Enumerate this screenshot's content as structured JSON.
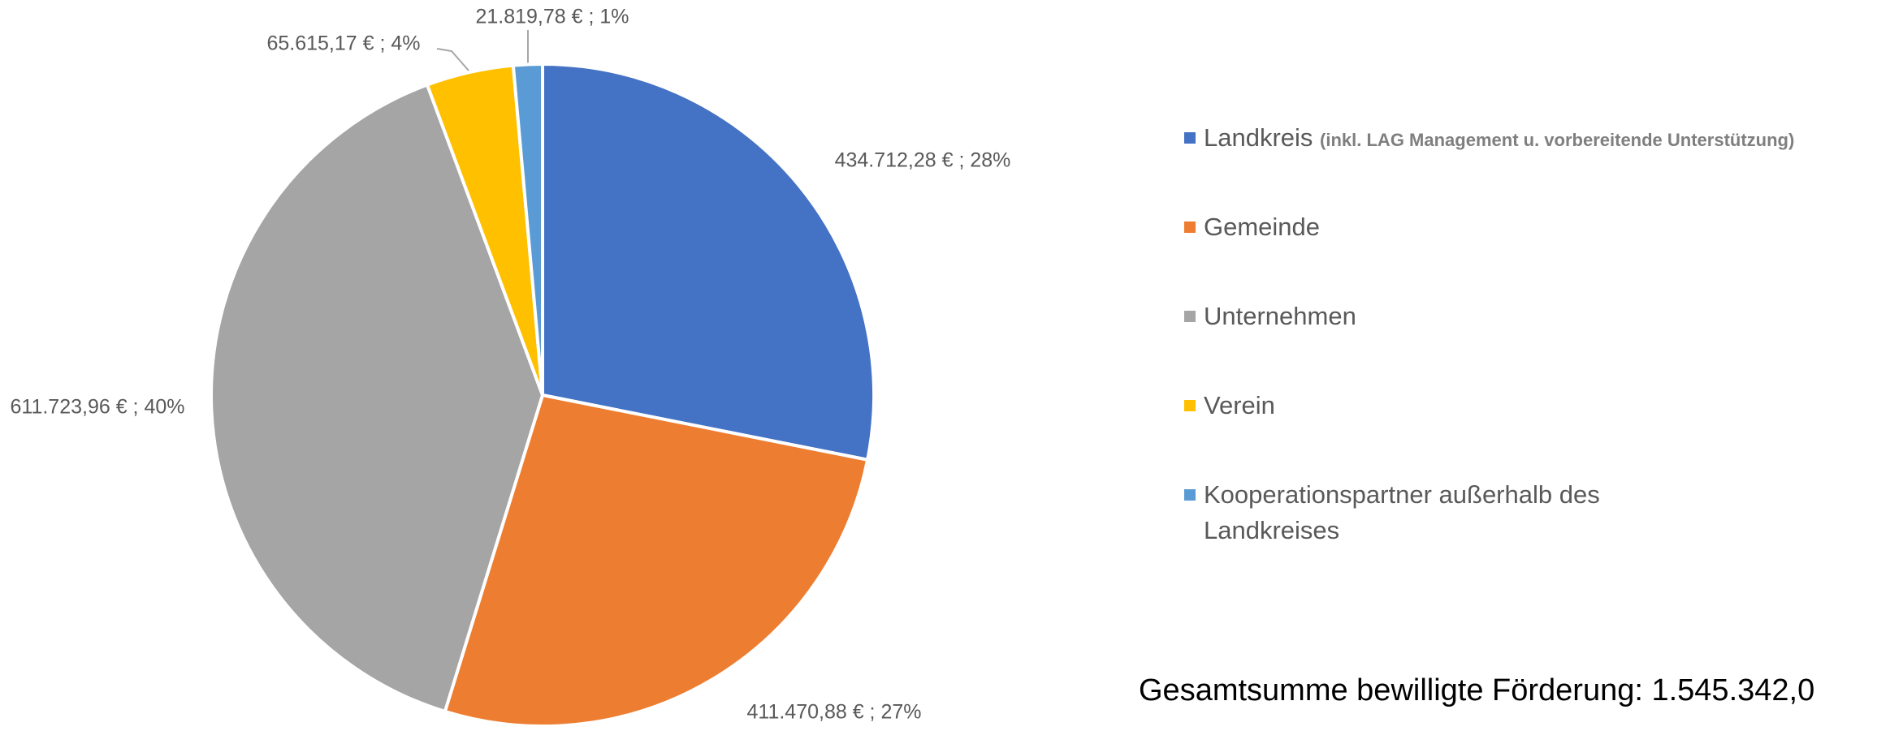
{
  "chart_data": {
    "type": "pie",
    "categories": [
      "Landkreis",
      "Gemeinde",
      "Unternehmen",
      "Verein",
      "Kooperationspartner außerhalb des Landkreises"
    ],
    "category_note": "(inkl. LAG Management u. vorbereitende Unterstützung)",
    "values": [
      434712.28,
      411470.88,
      611723.96,
      65615.17,
      21819.78
    ],
    "value_labels": [
      "434.712,28 € ; 28%",
      "411.470,88 € ; 27%",
      "611.723,96 € ; 40%",
      "65.615,17 € ; 4%",
      "21.819,78 € ; 1%"
    ],
    "colors": [
      "#4472c4",
      "#ed7d31",
      "#a5a5a5",
      "#ffc000",
      "#5b9bd5"
    ],
    "legend": "right",
    "footnote": "Gesamtsumme bewilligte Förderung: 1.545.342,0"
  }
}
